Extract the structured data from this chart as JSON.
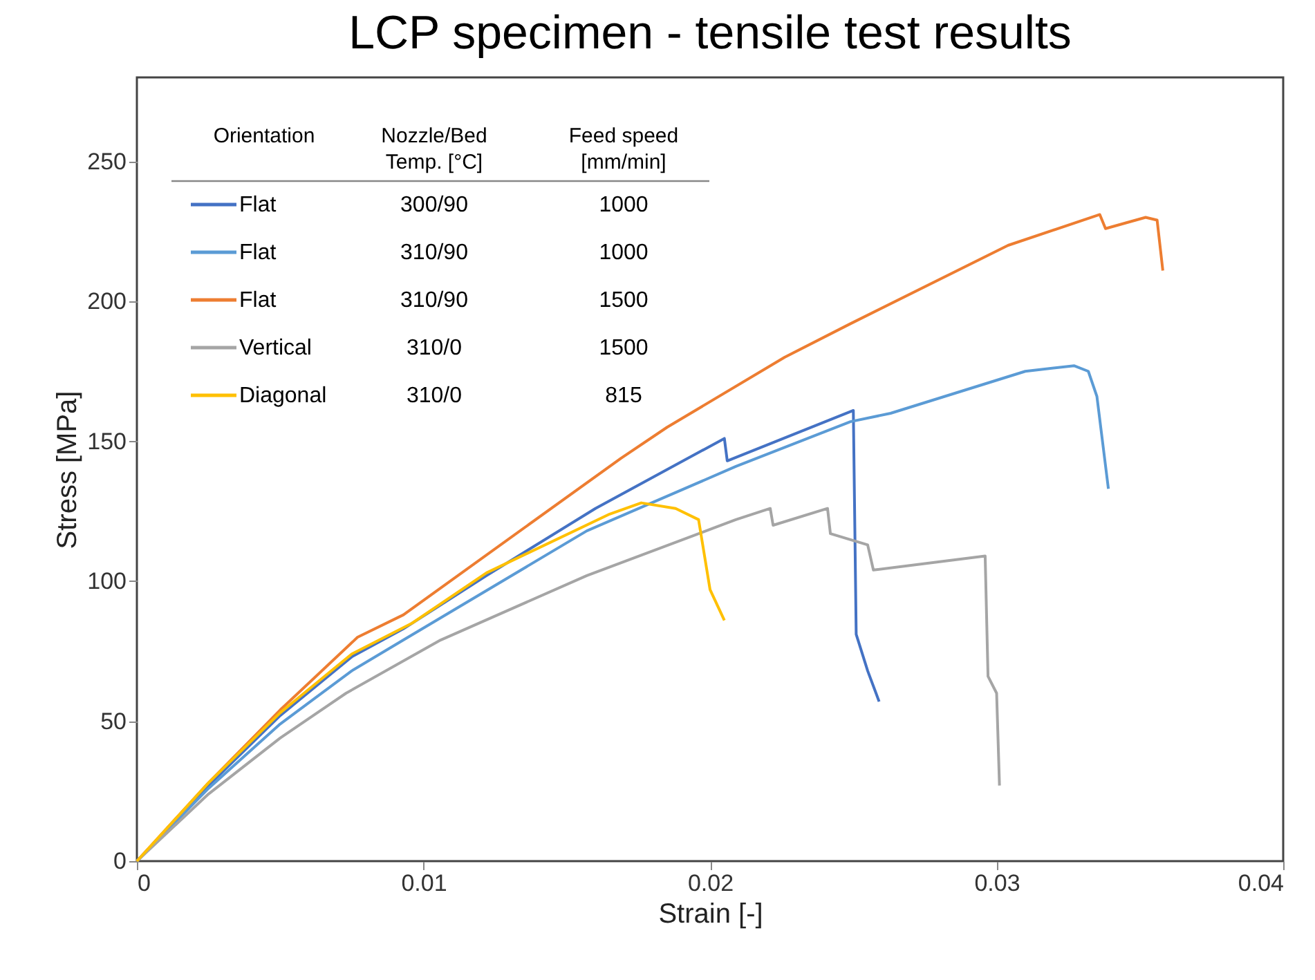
{
  "chart_data": {
    "type": "line",
    "title": "LCP specimen - tensile test results",
    "xlabel": "Strain [-]",
    "ylabel": "Stress [MPa]",
    "xlim": [
      0,
      0.04
    ],
    "xticks": [
      0,
      0.01,
      0.02,
      0.03,
      0.04
    ],
    "ylim": [
      0,
      280
    ],
    "yticks": [
      0,
      50,
      100,
      150,
      200,
      250
    ],
    "grid": false,
    "legend": "top left",
    "marker": "none",
    "line_style": "solid",
    "legend_title": "Orientation",
    "annotations": [
      "Nozzle/Bed\nTemp. [°C]",
      "Feed speed\n[mm/min]",
      "300/90",
      "1000",
      "310/90",
      "1000",
      "310/90",
      "1500",
      "310/0",
      "1500",
      "310/0",
      "815"
    ],
    "series": [
      {
        "name": "Flat",
        "color": "#4472c4",
        "x": [
          0,
          0.0025,
          0.005,
          0.0075,
          0.0093,
          0.0122,
          0.016,
          0.0205,
          0.0206,
          0.025,
          0.0251,
          0.0255,
          0.0259
        ],
        "values": [
          0,
          27,
          52,
          73,
          83,
          102,
          126,
          151,
          143,
          161,
          81,
          68,
          57
        ]
      },
      {
        "name": "Flat",
        "color": "#5b9bd5",
        "x": [
          0,
          0.0025,
          0.005,
          0.0075,
          0.0093,
          0.0157,
          0.0209,
          0.0249,
          0.0263,
          0.031,
          0.0327,
          0.0332,
          0.0335,
          0.0339
        ],
        "values": [
          0,
          26,
          49,
          68,
          79,
          118,
          141,
          157,
          160,
          175,
          177,
          175,
          166,
          133
        ]
      },
      {
        "name": "Flat",
        "color": "#ed7d31",
        "x": [
          0,
          0.0025,
          0.005,
          0.0077,
          0.0093,
          0.0169,
          0.0185,
          0.0226,
          0.0249,
          0.0304,
          0.0336,
          0.0338,
          0.0352,
          0.0356,
          0.0358
        ],
        "values": [
          0,
          28,
          54,
          80,
          88,
          144,
          155,
          180,
          192,
          220,
          231,
          226,
          230,
          229,
          211
        ]
      },
      {
        "name": "Vertical",
        "color": "#a5a5a5",
        "x": [
          0,
          0.0025,
          0.005,
          0.0073,
          0.0106,
          0.0157,
          0.0209,
          0.0221,
          0.0222,
          0.0241,
          0.0242,
          0.0255,
          0.0257,
          0.0296,
          0.0297,
          0.03,
          0.0301
        ],
        "values": [
          0,
          24,
          44,
          60,
          79,
          102,
          122,
          126,
          120,
          126,
          117,
          113,
          104,
          109,
          66,
          60,
          27
        ]
      },
      {
        "name": "Diagonal",
        "color": "#ffc000",
        "x": [
          0,
          0.0025,
          0.005,
          0.0075,
          0.0096,
          0.0122,
          0.0165,
          0.0176,
          0.0188,
          0.0196,
          0.02,
          0.0205
        ],
        "values": [
          0,
          28,
          53,
          74,
          85,
          103,
          124,
          128,
          126,
          122,
          97,
          86
        ]
      }
    ]
  }
}
